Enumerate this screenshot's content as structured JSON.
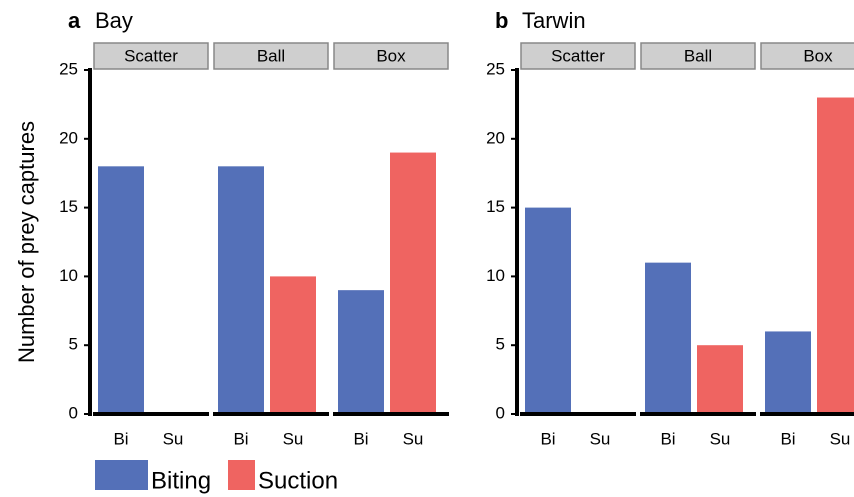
{
  "chart_data": [
    {
      "type": "bar",
      "panel": "a",
      "title": "Bay",
      "ylabel": "Number of prey captures",
      "ylim": [
        0,
        25
      ],
      "yticks": [
        0,
        5,
        10,
        15,
        20,
        25
      ],
      "legend": [
        {
          "name": "Biting",
          "color": "#5470b8"
        },
        {
          "name": "Suction",
          "color": "#ef6461"
        }
      ],
      "facets": [
        {
          "name": "Scatter",
          "categories": [
            "Bi",
            "Su"
          ],
          "values": [
            18,
            0
          ]
        },
        {
          "name": "Ball",
          "categories": [
            "Bi",
            "Su"
          ],
          "values": [
            18,
            10
          ]
        },
        {
          "name": "Box",
          "categories": [
            "Bi",
            "Su"
          ],
          "values": [
            9,
            19
          ]
        }
      ]
    },
    {
      "type": "bar",
      "panel": "b",
      "title": "Tarwin",
      "ylim": [
        0,
        25
      ],
      "yticks": [
        0,
        5,
        10,
        15,
        20,
        25
      ],
      "facets": [
        {
          "name": "Scatter",
          "categories": [
            "Bi",
            "Su"
          ],
          "values": [
            15,
            0
          ]
        },
        {
          "name": "Ball",
          "categories": [
            "Bi",
            "Su"
          ],
          "values": [
            11,
            5
          ]
        },
        {
          "name": "Box",
          "categories": [
            "Bi",
            "Su"
          ],
          "values": [
            6,
            23
          ]
        }
      ]
    }
  ]
}
